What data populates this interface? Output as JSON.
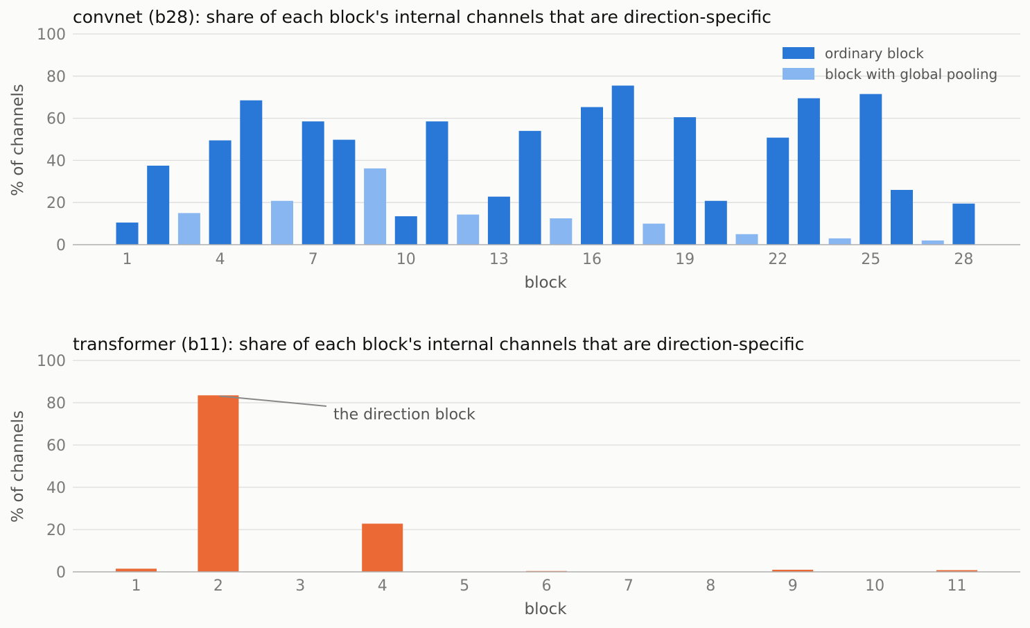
{
  "chart_data": [
    {
      "type": "bar",
      "title": "convnet (b28): share of each block's internal channels that are direction-specific",
      "xlabel": "block",
      "ylabel": "% of channels",
      "ylim": [
        0,
        100
      ],
      "yticks": [
        0,
        20,
        40,
        60,
        80,
        100
      ],
      "xticks": [
        1,
        4,
        7,
        10,
        13,
        16,
        19,
        22,
        25,
        28
      ],
      "grid": true,
      "legend_position": "top-right",
      "legend": [
        {
          "label": "ordinary block",
          "color": "#2977d6"
        },
        {
          "label": "block with global pooling",
          "color": "#88b6f0"
        }
      ],
      "categories": [
        1,
        2,
        3,
        4,
        5,
        6,
        7,
        8,
        9,
        10,
        11,
        12,
        13,
        14,
        15,
        16,
        17,
        18,
        19,
        20,
        21,
        22,
        23,
        24,
        25,
        26,
        27,
        28
      ],
      "values": [
        10.5,
        37.5,
        15,
        49.5,
        68.5,
        20.8,
        58.5,
        49.8,
        36.2,
        13.5,
        58.5,
        14.3,
        22.8,
        54,
        12.5,
        65.3,
        75.5,
        10,
        60.5,
        20.8,
        5,
        50.8,
        69.5,
        3,
        71.5,
        26,
        2,
        19.5
      ],
      "kind": [
        "ordinary",
        "ordinary",
        "pooling",
        "ordinary",
        "ordinary",
        "pooling",
        "ordinary",
        "ordinary",
        "pooling",
        "ordinary",
        "ordinary",
        "pooling",
        "ordinary",
        "ordinary",
        "pooling",
        "ordinary",
        "ordinary",
        "pooling",
        "ordinary",
        "ordinary",
        "pooling",
        "ordinary",
        "ordinary",
        "pooling",
        "ordinary",
        "ordinary",
        "pooling",
        "ordinary"
      ]
    },
    {
      "type": "bar",
      "title": "transformer (b11): share of each block's internal channels that are direction-specific",
      "xlabel": "block",
      "ylabel": "% of channels",
      "ylim": [
        0,
        100
      ],
      "yticks": [
        0,
        20,
        40,
        60,
        80,
        100
      ],
      "grid": true,
      "bar_color": "#eb6935",
      "categories": [
        1,
        2,
        3,
        4,
        5,
        6,
        7,
        8,
        9,
        10,
        11
      ],
      "values": [
        1.5,
        83.5,
        0,
        22.8,
        0,
        0.4,
        0,
        0,
        1,
        0,
        0.8
      ],
      "annotation": {
        "text": "the direction block",
        "target_block": 2,
        "target_value": 83.5
      }
    }
  ],
  "colors": {
    "grid": "#dddddd",
    "axis": "#b0b0b0",
    "annotation_line": "#888888",
    "background": "#fbfbfa"
  }
}
